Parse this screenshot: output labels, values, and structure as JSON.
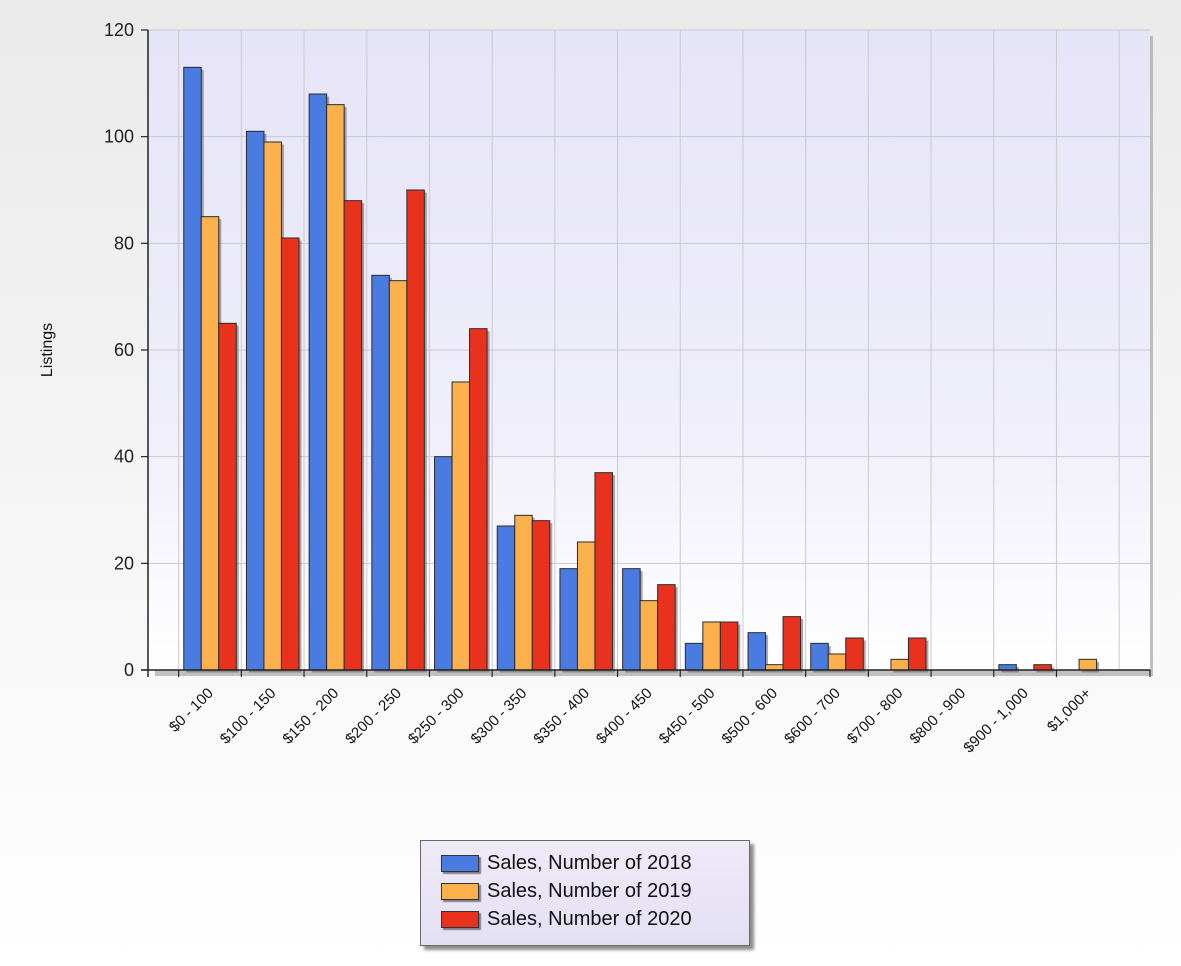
{
  "chart_data": {
    "type": "bar",
    "title": "",
    "xlabel": "",
    "ylabel": "Listings",
    "ylim": [
      0,
      120
    ],
    "yticks": [
      0,
      20,
      40,
      60,
      80,
      100,
      120
    ],
    "grid": true,
    "legend_position": "bottom-center",
    "categories": [
      "$0 - 100",
      "$100 - 150",
      "$150 - 200",
      "$200 - 250",
      "$250 - 300",
      "$300 - 350",
      "$350 - 400",
      "$400 - 450",
      "$450 - 500",
      "$500 - 600",
      "$600 - 700",
      "$700 - 800",
      "$800 - 900",
      "$900 - 1,000",
      "$1,000+"
    ],
    "series": [
      {
        "name": "Sales, Number of 2018",
        "color": "#4a7be0",
        "values": [
          113,
          101,
          108,
          74,
          40,
          27,
          19,
          19,
          5,
          7,
          5,
          0,
          0,
          1,
          0
        ]
      },
      {
        "name": "Sales, Number of 2019",
        "color": "#fdb14c",
        "values": [
          85,
          99,
          106,
          73,
          54,
          29,
          24,
          13,
          9,
          1,
          3,
          2,
          0,
          0,
          2
        ]
      },
      {
        "name": "Sales, Number of 2020",
        "color": "#e8321e",
        "values": [
          65,
          81,
          88,
          90,
          64,
          28,
          37,
          16,
          9,
          10,
          6,
          6,
          0,
          1,
          0
        ]
      }
    ]
  }
}
